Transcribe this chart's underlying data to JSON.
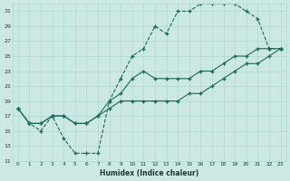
{
  "xlabel": "Humidex (Indice chaleur)",
  "ylabel": "",
  "bg_color": "#cce8e4",
  "grid_color": "#b0d8d0",
  "line_color": "#1a6b5a",
  "xlim": [
    -0.5,
    23.5
  ],
  "ylim": [
    11,
    32
  ],
  "xticks": [
    0,
    1,
    2,
    3,
    4,
    5,
    6,
    7,
    8,
    9,
    10,
    11,
    12,
    13,
    14,
    15,
    16,
    17,
    18,
    19,
    20,
    21,
    22,
    23
  ],
  "yticks": [
    11,
    13,
    15,
    17,
    19,
    21,
    23,
    25,
    27,
    29,
    31
  ],
  "line1_x": [
    0,
    1,
    2,
    3,
    4,
    5,
    6,
    7,
    8,
    9,
    10,
    11,
    12,
    13,
    14,
    15,
    16,
    17,
    18,
    19,
    20,
    21,
    22,
    23
  ],
  "line1_y": [
    18,
    16,
    15,
    17,
    14,
    12,
    12,
    12,
    19,
    22,
    25,
    26,
    29,
    28,
    31,
    31,
    32,
    32,
    32,
    32,
    31,
    30,
    26,
    26
  ],
  "line2_x": [
    0,
    1,
    2,
    3,
    4,
    5,
    6,
    7,
    8,
    9,
    10,
    11,
    12,
    13,
    14,
    15,
    16,
    17,
    18,
    19,
    20,
    21,
    22,
    23
  ],
  "line2_y": [
    18,
    16,
    16,
    17,
    17,
    16,
    16,
    17,
    19,
    20,
    22,
    23,
    22,
    22,
    22,
    22,
    23,
    23,
    24,
    25,
    25,
    26,
    26,
    26
  ],
  "line3_x": [
    0,
    1,
    2,
    3,
    4,
    5,
    6,
    7,
    8,
    9,
    10,
    11,
    12,
    13,
    14,
    15,
    16,
    17,
    18,
    19,
    20,
    21,
    22,
    23
  ],
  "line3_y": [
    18,
    16,
    16,
    17,
    17,
    16,
    16,
    17,
    18,
    19,
    19,
    19,
    19,
    19,
    19,
    20,
    20,
    21,
    22,
    23,
    24,
    24,
    25,
    26
  ]
}
